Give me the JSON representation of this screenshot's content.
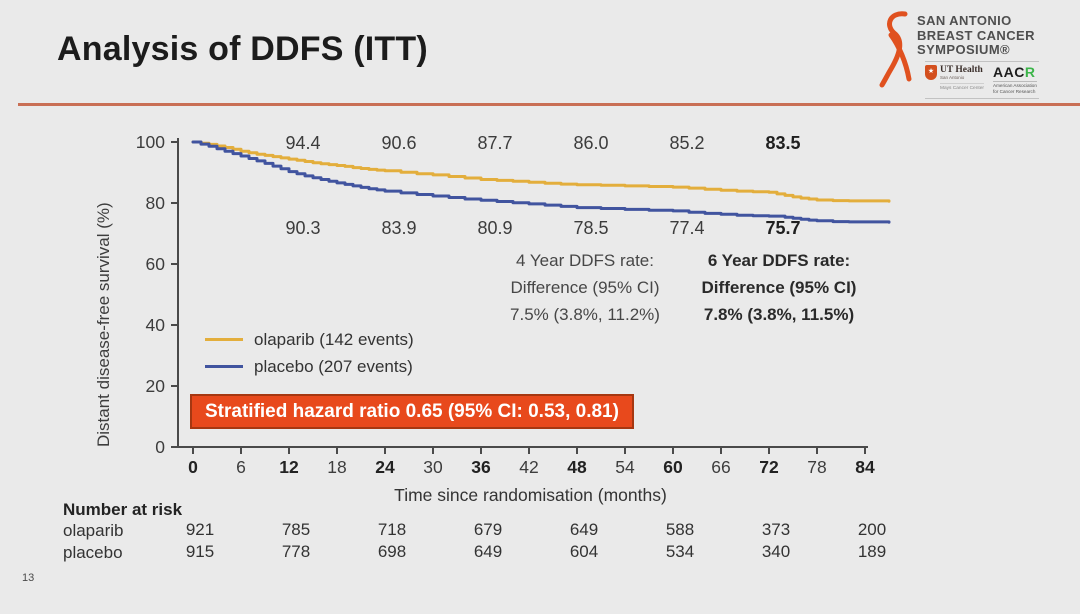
{
  "slide": {
    "title": "Analysis of DDFS (ITT)",
    "page_number": "13"
  },
  "logo": {
    "org_line1": "SAN ANTONIO",
    "org_line2": "BREAST CANCER",
    "org_line3": "SYMPOSIUM®",
    "ut_health": {
      "star": "★",
      "name": "UT Health",
      "sub1": "San Antonio",
      "sub2": "Mays Cancer Center"
    },
    "aacr": {
      "name_black": "AAC",
      "name_green": "R",
      "sub1": "American Association",
      "sub2": "for Cancer Research"
    }
  },
  "colors": {
    "background": "#eaeaea",
    "accent_line": "#c96f55",
    "axis": "#4a4a4a",
    "tick_text": "#3d3d3d",
    "olaparib": "#e3ae3c",
    "placebo": "#41549f",
    "banner_bg": "#e8491c",
    "banner_border": "#a63711",
    "banner_text": "#ffffff",
    "ribbon": "#e0511f",
    "aacr_green": "#3cb54a"
  },
  "chart_data": {
    "type": "line",
    "subtype": "kaplan-meier-step",
    "xlabel": "Time since randomisation (months)",
    "ylabel": "Distant disease-free survival (%)",
    "xlim": [
      0,
      87
    ],
    "ylim": [
      0,
      100
    ],
    "x_ticks": [
      0,
      6,
      12,
      18,
      24,
      30,
      36,
      42,
      48,
      54,
      60,
      66,
      72,
      78,
      84
    ],
    "x_ticks_bold": [
      0,
      12,
      24,
      36,
      48,
      60,
      72,
      84
    ],
    "y_ticks": [
      0,
      20,
      40,
      60,
      80,
      100
    ],
    "grid": false,
    "legend_position": "inside-left",
    "series": [
      {
        "name": "olaparib",
        "legend": "olaparib (142 events)",
        "events": 142,
        "rate_labels": {
          "months": [
            12,
            24,
            36,
            48,
            60,
            72
          ],
          "values": [
            "94.4",
            "90.6",
            "87.7",
            "86.0",
            "85.2",
            "83.5"
          ],
          "bold_last": true
        },
        "points": [
          [
            0,
            100
          ],
          [
            1,
            99.6
          ],
          [
            2,
            99.2
          ],
          [
            3,
            98.7
          ],
          [
            4,
            98.2
          ],
          [
            5,
            97.6
          ],
          [
            6,
            97.0
          ],
          [
            7,
            96.5
          ],
          [
            8,
            96.0
          ],
          [
            9,
            95.6
          ],
          [
            10,
            95.2
          ],
          [
            11,
            94.8
          ],
          [
            12,
            94.4
          ],
          [
            13,
            94.0
          ],
          [
            14,
            93.6
          ],
          [
            15,
            93.2
          ],
          [
            16,
            92.9
          ],
          [
            17,
            92.6
          ],
          [
            18,
            92.3
          ],
          [
            19,
            92.0
          ],
          [
            20,
            91.6
          ],
          [
            21,
            91.3
          ],
          [
            22,
            91.0
          ],
          [
            23,
            90.8
          ],
          [
            24,
            90.6
          ],
          [
            26,
            90.1
          ],
          [
            28,
            89.6
          ],
          [
            30,
            89.2
          ],
          [
            32,
            88.7
          ],
          [
            34,
            88.2
          ],
          [
            36,
            87.7
          ],
          [
            38,
            87.4
          ],
          [
            40,
            87.1
          ],
          [
            42,
            86.8
          ],
          [
            44,
            86.5
          ],
          [
            46,
            86.2
          ],
          [
            48,
            86.0
          ],
          [
            51,
            85.8
          ],
          [
            54,
            85.6
          ],
          [
            57,
            85.4
          ],
          [
            60,
            85.2
          ],
          [
            62,
            84.9
          ],
          [
            64,
            84.5
          ],
          [
            66,
            84.2
          ],
          [
            68,
            83.9
          ],
          [
            70,
            83.7
          ],
          [
            72,
            83.5
          ],
          [
            73,
            83.0
          ],
          [
            74,
            82.5
          ],
          [
            75,
            82.0
          ],
          [
            76,
            81.6
          ],
          [
            77,
            81.3
          ],
          [
            78,
            81.0
          ],
          [
            80,
            80.8
          ],
          [
            82,
            80.7
          ],
          [
            87,
            80.6
          ]
        ]
      },
      {
        "name": "placebo",
        "legend": "placebo (207 events)",
        "events": 207,
        "rate_labels": {
          "months": [
            12,
            24,
            36,
            48,
            60,
            72
          ],
          "values": [
            "90.3",
            "83.9",
            "80.9",
            "78.5",
            "77.4",
            "75.7"
          ],
          "bold_last": true
        },
        "points": [
          [
            0,
            100
          ],
          [
            1,
            99.3
          ],
          [
            2,
            98.6
          ],
          [
            3,
            97.8
          ],
          [
            4,
            97.0
          ],
          [
            5,
            96.2
          ],
          [
            6,
            95.4
          ],
          [
            7,
            94.6
          ],
          [
            8,
            93.8
          ],
          [
            9,
            93.0
          ],
          [
            10,
            92.1
          ],
          [
            11,
            91.2
          ],
          [
            12,
            90.3
          ],
          [
            13,
            89.6
          ],
          [
            14,
            88.9
          ],
          [
            15,
            88.3
          ],
          [
            16,
            87.7
          ],
          [
            17,
            87.1
          ],
          [
            18,
            86.6
          ],
          [
            19,
            86.1
          ],
          [
            20,
            85.6
          ],
          [
            21,
            85.1
          ],
          [
            22,
            84.7
          ],
          [
            23,
            84.3
          ],
          [
            24,
            83.9
          ],
          [
            26,
            83.3
          ],
          [
            28,
            82.8
          ],
          [
            30,
            82.3
          ],
          [
            32,
            81.8
          ],
          [
            34,
            81.3
          ],
          [
            36,
            80.9
          ],
          [
            38,
            80.5
          ],
          [
            40,
            80.1
          ],
          [
            42,
            79.7
          ],
          [
            44,
            79.3
          ],
          [
            46,
            78.9
          ],
          [
            48,
            78.5
          ],
          [
            51,
            78.2
          ],
          [
            54,
            77.9
          ],
          [
            57,
            77.6
          ],
          [
            60,
            77.4
          ],
          [
            62,
            77.0
          ],
          [
            64,
            76.6
          ],
          [
            66,
            76.3
          ],
          [
            68,
            76.0
          ],
          [
            70,
            75.8
          ],
          [
            72,
            75.7
          ],
          [
            74,
            75.3
          ],
          [
            75,
            75.0
          ],
          [
            76,
            74.7
          ],
          [
            77,
            74.4
          ],
          [
            78,
            74.2
          ],
          [
            80,
            73.9
          ],
          [
            82,
            73.8
          ],
          [
            87,
            73.7
          ]
        ]
      }
    ],
    "annotations": {
      "rate_4yr": {
        "lines": [
          "4 Year DDFS rate:",
          "Difference (95% CI)",
          "7.5% (3.8%, 11.2%)"
        ]
      },
      "rate_6yr": {
        "lines": [
          "6 Year DDFS rate:",
          "Difference (95% CI)",
          "7.8% (3.8%, 11.5%)"
        ]
      },
      "hazard": "Stratified hazard ratio 0.65 (95% CI: 0.53, 0.81)"
    },
    "number_at_risk": {
      "header": "Number at risk",
      "months": [
        0,
        12,
        24,
        36,
        48,
        60,
        72,
        84
      ],
      "rows": [
        {
          "label": "olaparib",
          "values": [
            921,
            785,
            718,
            679,
            649,
            588,
            373,
            200
          ]
        },
        {
          "label": "placebo",
          "values": [
            915,
            778,
            698,
            649,
            604,
            534,
            340,
            189
          ]
        }
      ]
    }
  }
}
